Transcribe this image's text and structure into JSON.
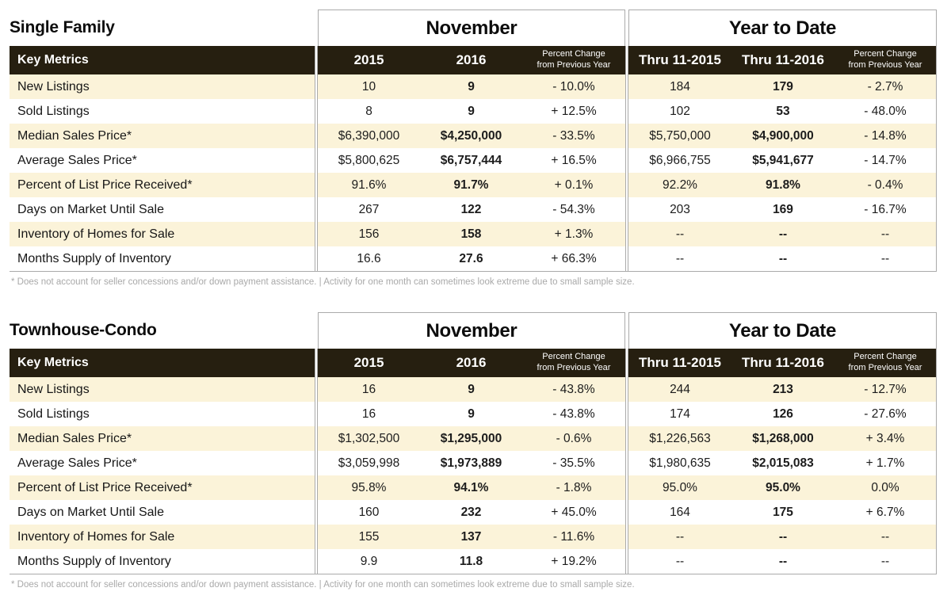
{
  "page": {
    "footnote": "* Does not account for seller concessions and/or down payment assistance.  |  Activity for one month can sometimes look extreme due to small sample size."
  },
  "colors": {
    "header_background": "#261f10",
    "stripe_cream": "#fbf3d9",
    "rule_gray": "#aaaaaa",
    "footnote_gray": "#a9a9a9"
  },
  "header_labels": {
    "key_metrics": "Key Metrics",
    "nov_2015": "2015",
    "nov_2016": "2016",
    "ytd_2015": "Thru 11-2015",
    "ytd_2016": "Thru 11-2016",
    "pct_change_line1": "Percent Change",
    "pct_change_line2": "from Previous Year"
  },
  "tables": [
    {
      "title": "Single Family",
      "november_label": "November",
      "ytd_label": "Year to Date",
      "rows": [
        {
          "label": "New Listings",
          "nov": [
            "10",
            "9",
            "- 10.0%"
          ],
          "ytd": [
            "184",
            "179",
            "- 2.7%"
          ]
        },
        {
          "label": "Sold Listings",
          "nov": [
            "8",
            "9",
            "+ 12.5%"
          ],
          "ytd": [
            "102",
            "53",
            "- 48.0%"
          ]
        },
        {
          "label": "Median Sales Price*",
          "nov": [
            "$6,390,000",
            "$4,250,000",
            "- 33.5%"
          ],
          "ytd": [
            "$5,750,000",
            "$4,900,000",
            "- 14.8%"
          ]
        },
        {
          "label": "Average Sales Price*",
          "nov": [
            "$5,800,625",
            "$6,757,444",
            "+ 16.5%"
          ],
          "ytd": [
            "$6,966,755",
            "$5,941,677",
            "- 14.7%"
          ]
        },
        {
          "label": "Percent of List Price Received*",
          "nov": [
            "91.6%",
            "91.7%",
            "+ 0.1%"
          ],
          "ytd": [
            "92.2%",
            "91.8%",
            "- 0.4%"
          ]
        },
        {
          "label": "Days on Market Until Sale",
          "nov": [
            "267",
            "122",
            "- 54.3%"
          ],
          "ytd": [
            "203",
            "169",
            "- 16.7%"
          ]
        },
        {
          "label": "Inventory of Homes for Sale",
          "nov": [
            "156",
            "158",
            "+ 1.3%"
          ],
          "ytd": [
            "--",
            "--",
            "--"
          ]
        },
        {
          "label": "Months Supply of Inventory",
          "nov": [
            "16.6",
            "27.6",
            "+ 66.3%"
          ],
          "ytd": [
            "--",
            "--",
            "--"
          ]
        }
      ]
    },
    {
      "title": "Townhouse-Condo",
      "november_label": "November",
      "ytd_label": "Year to Date",
      "rows": [
        {
          "label": "New Listings",
          "nov": [
            "16",
            "9",
            "- 43.8%"
          ],
          "ytd": [
            "244",
            "213",
            "- 12.7%"
          ]
        },
        {
          "label": "Sold Listings",
          "nov": [
            "16",
            "9",
            "- 43.8%"
          ],
          "ytd": [
            "174",
            "126",
            "- 27.6%"
          ]
        },
        {
          "label": "Median Sales Price*",
          "nov": [
            "$1,302,500",
            "$1,295,000",
            "- 0.6%"
          ],
          "ytd": [
            "$1,226,563",
            "$1,268,000",
            "+ 3.4%"
          ]
        },
        {
          "label": "Average Sales Price*",
          "nov": [
            "$3,059,998",
            "$1,973,889",
            "- 35.5%"
          ],
          "ytd": [
            "$1,980,635",
            "$2,015,083",
            "+ 1.7%"
          ]
        },
        {
          "label": "Percent of List Price Received*",
          "nov": [
            "95.8%",
            "94.1%",
            "- 1.8%"
          ],
          "ytd": [
            "95.0%",
            "95.0%",
            "0.0%"
          ]
        },
        {
          "label": "Days on Market Until Sale",
          "nov": [
            "160",
            "232",
            "+ 45.0%"
          ],
          "ytd": [
            "164",
            "175",
            "+ 6.7%"
          ]
        },
        {
          "label": "Inventory of Homes for Sale",
          "nov": [
            "155",
            "137",
            "- 11.6%"
          ],
          "ytd": [
            "--",
            "--",
            "--"
          ]
        },
        {
          "label": "Months Supply of Inventory",
          "nov": [
            "9.9",
            "11.8",
            "+ 19.2%"
          ],
          "ytd": [
            "--",
            "--",
            "--"
          ]
        }
      ]
    }
  ]
}
